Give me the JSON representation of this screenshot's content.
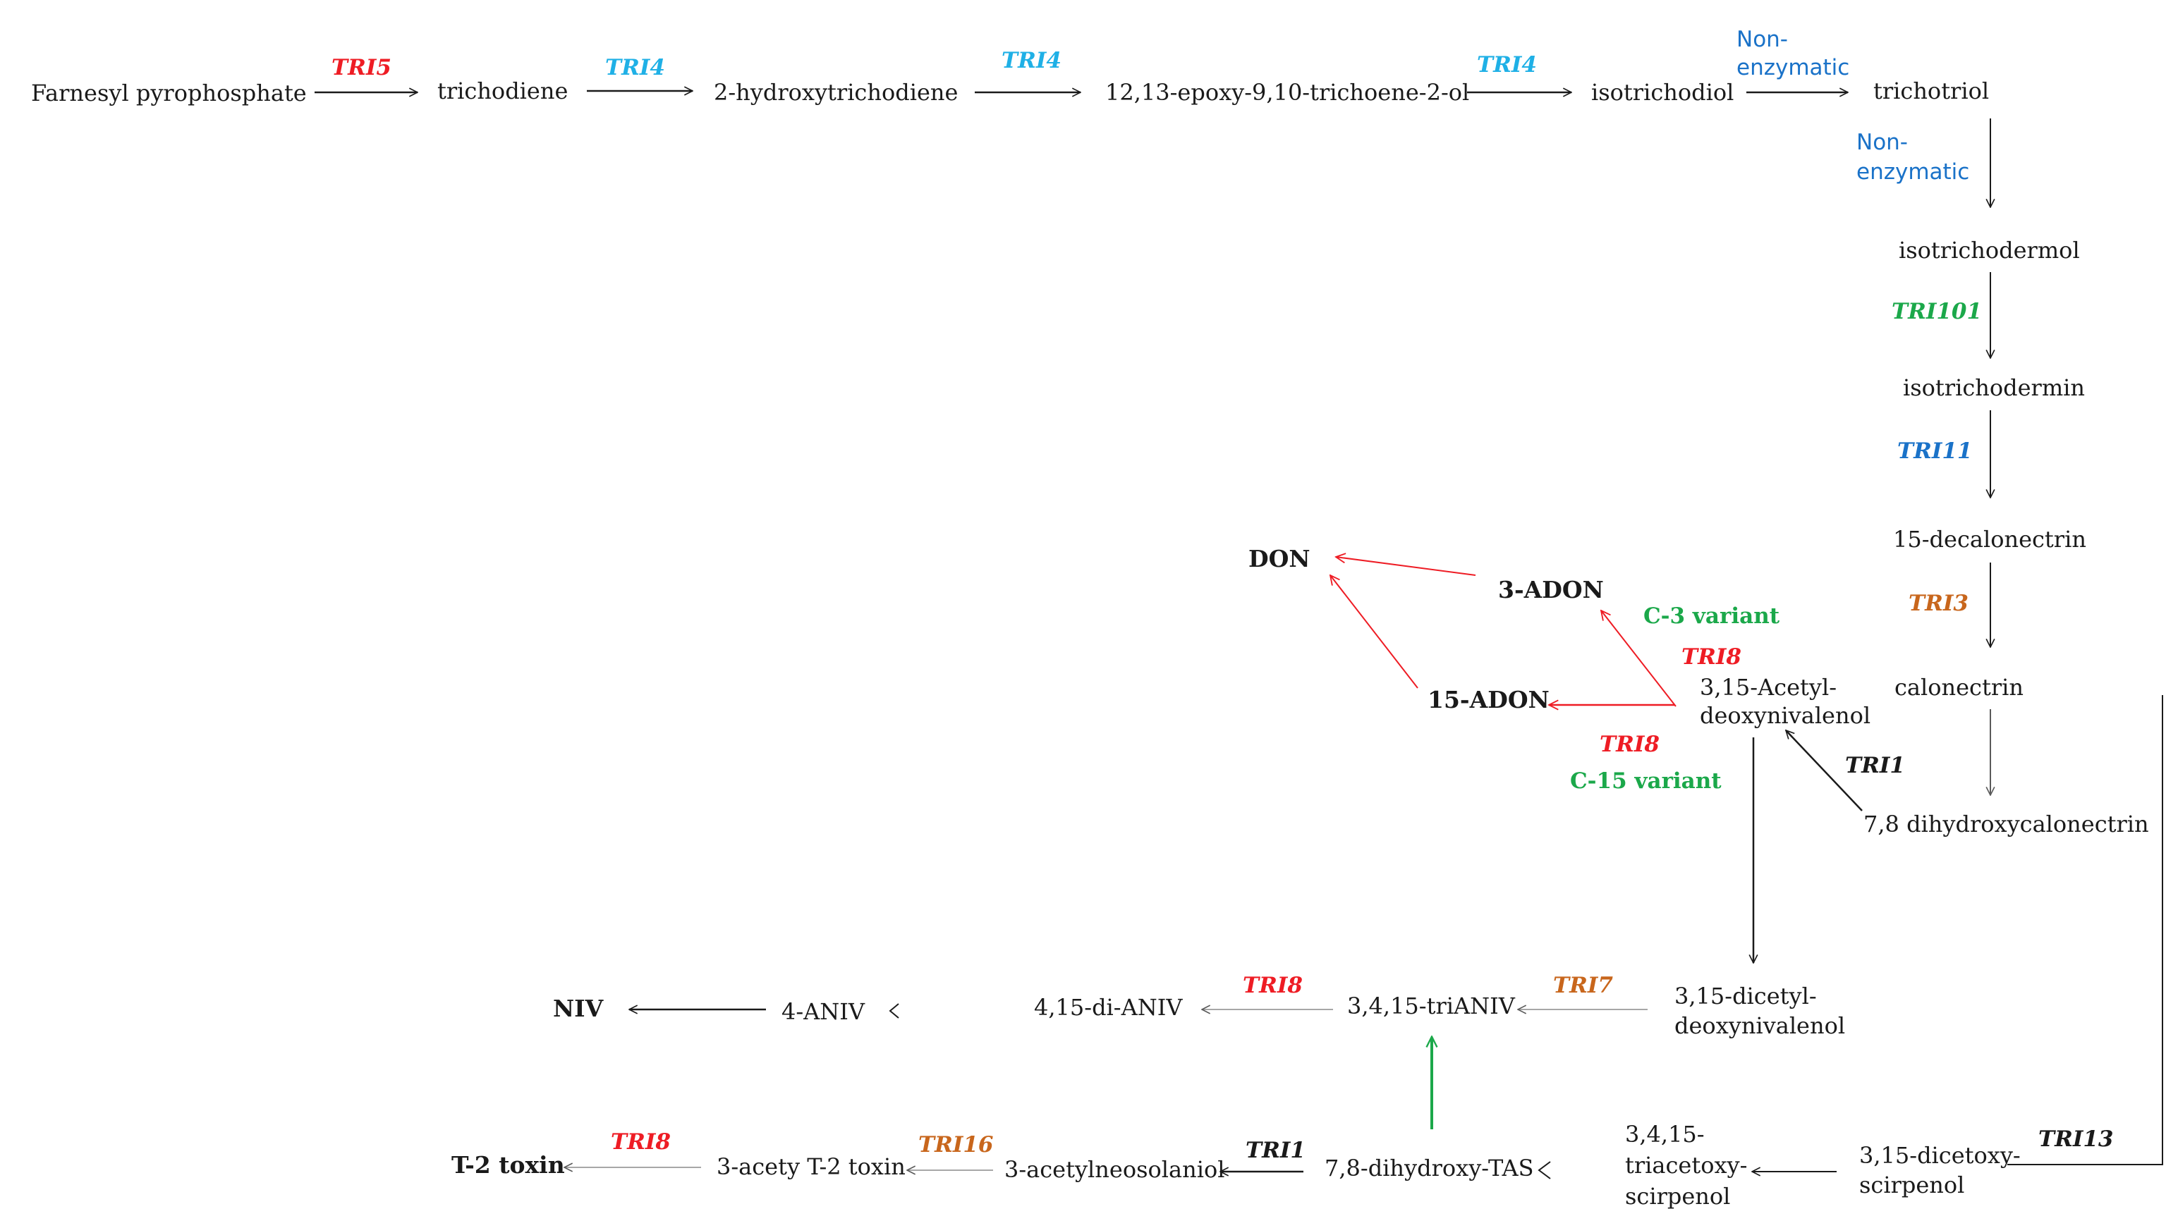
{
  "colors": {
    "red": "#ee1c24",
    "cyan": "#1fb0e6",
    "blue": "#1a72c8",
    "green": "#1ba84a",
    "orange": "#c8661c",
    "black": "#1a1a1a",
    "gray": "#8a8a8a"
  },
  "compounds": {
    "farnesyl": "Farnesyl pyrophosphate",
    "trichodiene": "trichodiene",
    "hydroxytrichodiene": "2-hydroxytrichodiene",
    "epoxy": "12,13-epoxy-9,10-trichoene-2-ol",
    "isotrichodiol": "isotrichodiol",
    "trichotriol": "trichotriol",
    "isotrichodermol": "isotrichodermol",
    "isotrichodermin": "isotrichodermin",
    "decalonectrin": "15-decalonectrin",
    "calonectrin": "calonectrin",
    "dihydroxycalonectrin": "7,8 dihydroxycalonectrin",
    "acetyl_don_line1": "3,15-Acetyl-",
    "acetyl_don_line2": "deoxynivalenol",
    "don": "DON",
    "adon3": "3-ADON",
    "adon15": "15-ADON",
    "dicetyl_line1": "3,15-dicetyl-",
    "dicetyl_line2": "deoxynivalenol",
    "trianiv": "3,4,15-triANIV",
    "dianiv": "4,15-di-ANIV",
    "aniv4": "4-ANIV",
    "niv": "NIV",
    "dicetoxy_line1": "3,15-dicetoxy-",
    "dicetoxy_line2": "scirpenol",
    "triacetoxy_line1": "3,4,15-",
    "triacetoxy_line2": "triacetoxy-",
    "triacetoxy_line3": "scirpenol",
    "dihydroxy_tas": "7,8-dihydroxy-TAS",
    "acetylneosolaniol": "3-acetylneosolaniol",
    "acety_t2": "3-acety T-2 toxin",
    "t2": "T-2 toxin"
  },
  "enzymes": {
    "tri5": "TRI5",
    "tri4_a": "TRI4",
    "tri4_b": "TRI4",
    "tri4_c": "TRI4",
    "nonenz1_line1": "Non-",
    "nonenz1_line2": "enzymatic",
    "nonenz2_line1": "Non-",
    "nonenz2_line2": "enzymatic",
    "tri101": "TRI101",
    "tri11": "TRI11",
    "tri3": "TRI3",
    "tri1_a": "TRI1",
    "tri8_c3": "TRI8",
    "tri8_c15": "TRI8",
    "tri7": "TRI7",
    "tri8_niv": "TRI8",
    "tri13": "TRI13",
    "tri1_b": "TRI1",
    "tri16": "TRI16",
    "tri8_t2": "TRI8"
  },
  "variants": {
    "c3": "C-3 variant",
    "c15": "C-15 variant"
  }
}
